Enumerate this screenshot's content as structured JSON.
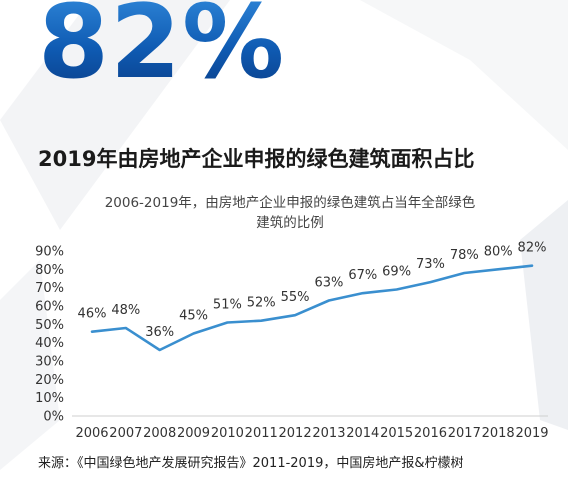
{
  "highlight": {
    "value": "82%"
  },
  "headline": "2019年由房地产企业申报的绿色建筑面积占比",
  "chart_data": {
    "type": "line",
    "title_line1": "2006-2019年，由房地产企业申报的绿色建筑占当年全部绿色",
    "title_line2": "建筑的比例",
    "x": [
      "2006",
      "2007",
      "2008",
      "2009",
      "2010",
      "2011",
      "2012",
      "2013",
      "2014",
      "2015",
      "2016",
      "2017",
      "2018",
      "2019"
    ],
    "values": [
      46,
      48,
      36,
      45,
      51,
      52,
      55,
      63,
      67,
      69,
      73,
      78,
      80,
      82
    ],
    "data_labels": [
      "46%",
      "48%",
      "36%",
      "45%",
      "51%",
      "52%",
      "55%",
      "63%",
      "67%",
      "69%",
      "73%",
      "78%",
      "80%",
      "82%"
    ],
    "y_ticks": [
      "0%",
      "10%",
      "20%",
      "30%",
      "40%",
      "50%",
      "60%",
      "70%",
      "80%",
      "90%"
    ],
    "ylim": [
      0,
      90
    ],
    "line_color": "#3a8fcf",
    "grid": false
  },
  "source": "来源：《中国绿色地产发展研究报告》2011-2019，中国房地产报&柠檬树"
}
